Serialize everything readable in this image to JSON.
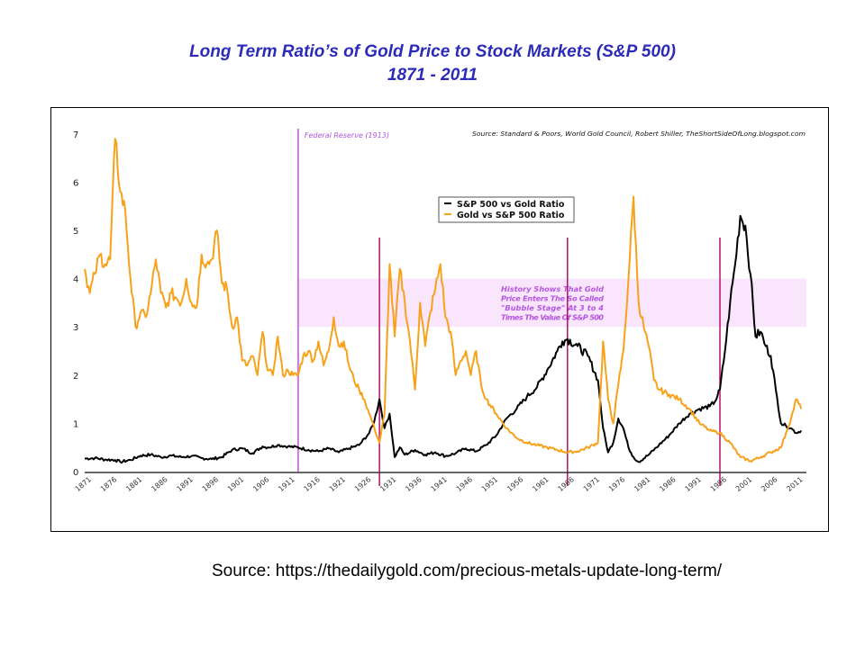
{
  "title_line1": "Long Term  Ratio’s of Gold Price to Stock Markets (S&P 500)",
  "title_line2": "1871 -  2011",
  "footer_source": "Source:  https://thedailygold.com/precious-metals-update-long-term/",
  "chart_data": {
    "type": "line",
    "title": "Long Term Ratio’s of Gold Price to Stock Markets (S&P 500) 1871 - 2011",
    "xlabel": "",
    "ylabel": "",
    "xlim": [
      1871,
      2013
    ],
    "ylim": [
      0,
      7
    ],
    "yticks": [
      0,
      1,
      2,
      3,
      4,
      5,
      6,
      7
    ],
    "xticks": [
      1871,
      1876,
      1881,
      1886,
      1891,
      1896,
      1901,
      1906,
      1911,
      1916,
      1921,
      1926,
      1931,
      1936,
      1941,
      1946,
      1951,
      1956,
      1961,
      1966,
      1971,
      1976,
      1981,
      1986,
      1991,
      1996,
      2001,
      2006,
      2011
    ],
    "grid": false,
    "legend_position": "upper-center",
    "source_note": "Source: Standard & Poors, World Gold Council, Robert Shiller, TheShortSideOfLong.blogspot.com",
    "series": [
      {
        "name": "S&P 500 vs Gold Ratio",
        "color": "#000000",
        "x": [
          1871,
          1873,
          1875,
          1877,
          1878,
          1880,
          1882,
          1884,
          1886,
          1888,
          1890,
          1892,
          1894,
          1896,
          1898,
          1900,
          1902,
          1904,
          1906,
          1907,
          1909,
          1911,
          1913,
          1915,
          1917,
          1919,
          1921,
          1923,
          1925,
          1927,
          1928,
          1929,
          1930,
          1931,
          1932,
          1933,
          1934,
          1936,
          1938,
          1940,
          1942,
          1944,
          1946,
          1948,
          1950,
          1952,
          1954,
          1956,
          1958,
          1960,
          1962,
          1964,
          1965,
          1966,
          1968,
          1970,
          1972,
          1973,
          1974,
          1975,
          1976,
          1977,
          1978,
          1979,
          1980,
          1982,
          1984,
          1986,
          1988,
          1990,
          1992,
          1994,
          1995,
          1996,
          1997,
          1998,
          1999,
          2000,
          2001,
          2002,
          2003,
          2004,
          2005,
          2006,
          2007,
          2008,
          2009,
          2010,
          2011,
          2012
        ],
        "y": [
          0.27,
          0.28,
          0.25,
          0.24,
          0.2,
          0.24,
          0.33,
          0.35,
          0.3,
          0.33,
          0.3,
          0.32,
          0.28,
          0.26,
          0.3,
          0.45,
          0.48,
          0.38,
          0.52,
          0.5,
          0.55,
          0.52,
          0.5,
          0.45,
          0.42,
          0.48,
          0.4,
          0.48,
          0.55,
          0.8,
          1.05,
          1.5,
          0.9,
          1.2,
          0.3,
          0.5,
          0.35,
          0.45,
          0.35,
          0.4,
          0.32,
          0.38,
          0.48,
          0.42,
          0.55,
          0.75,
          1.1,
          1.3,
          1.55,
          1.75,
          2.1,
          2.5,
          2.7,
          2.75,
          2.6,
          2.4,
          1.9,
          0.9,
          0.4,
          0.6,
          1.1,
          0.9,
          0.5,
          0.3,
          0.2,
          0.35,
          0.55,
          0.75,
          1.0,
          1.2,
          1.3,
          1.35,
          1.45,
          1.7,
          2.5,
          3.5,
          4.3,
          5.3,
          5.1,
          4.1,
          2.8,
          2.9,
          2.6,
          2.4,
          1.7,
          1.0,
          0.95,
          0.9,
          0.8,
          0.85
        ]
      },
      {
        "name": "Gold vs S&P 500 Ratio",
        "color": "#f7a21b",
        "x": [
          1871,
          1872,
          1873,
          1874,
          1875,
          1876,
          1877,
          1878,
          1879,
          1880,
          1881,
          1882,
          1883,
          1884,
          1885,
          1886,
          1887,
          1888,
          1889,
          1890,
          1891,
          1892,
          1893,
          1894,
          1895,
          1896,
          1897,
          1898,
          1899,
          1900,
          1901,
          1902,
          1903,
          1904,
          1905,
          1906,
          1907,
          1908,
          1909,
          1910,
          1911,
          1912,
          1913,
          1914,
          1915,
          1916,
          1917,
          1918,
          1919,
          1920,
          1921,
          1922,
          1923,
          1924,
          1925,
          1926,
          1927,
          1928,
          1929,
          1930,
          1931,
          1932,
          1933,
          1934,
          1935,
          1936,
          1937,
          1938,
          1939,
          1940,
          1941,
          1942,
          1943,
          1944,
          1945,
          1946,
          1947,
          1948,
          1949,
          1950,
          1952,
          1954,
          1956,
          1958,
          1960,
          1962,
          1964,
          1966,
          1968,
          1970,
          1972,
          1973,
          1974,
          1975,
          1976,
          1977,
          1978,
          1979,
          1980,
          1981,
          1982,
          1983,
          1984,
          1986,
          1988,
          1990,
          1992,
          1994,
          1996,
          1998,
          2000,
          2002,
          2004,
          2006,
          2008,
          2009,
          2010,
          2011,
          2012
        ],
        "y": [
          4.2,
          3.7,
          4.1,
          4.5,
          4.3,
          4.4,
          6.9,
          5.8,
          5.4,
          4.0,
          3.0,
          3.3,
          3.2,
          3.7,
          4.4,
          3.7,
          3.4,
          3.7,
          3.6,
          3.5,
          4.0,
          3.5,
          3.4,
          4.5,
          4.3,
          4.4,
          5.0,
          3.9,
          3.8,
          3.0,
          3.2,
          2.3,
          2.2,
          2.4,
          2.0,
          2.9,
          2.1,
          2.0,
          2.8,
          2.0,
          2.1,
          2.0,
          2.0,
          2.4,
          2.5,
          2.3,
          2.7,
          2.2,
          2.5,
          3.2,
          2.6,
          2.7,
          2.2,
          1.9,
          1.7,
          1.5,
          1.2,
          0.9,
          0.6,
          1.2,
          4.3,
          2.8,
          4.2,
          3.5,
          2.7,
          1.7,
          3.5,
          2.6,
          3.3,
          3.8,
          4.3,
          3.2,
          2.9,
          2.0,
          2.3,
          2.5,
          2.0,
          2.5,
          1.8,
          1.5,
          1.2,
          0.9,
          0.7,
          0.6,
          0.55,
          0.5,
          0.45,
          0.4,
          0.42,
          0.5,
          0.6,
          2.7,
          1.5,
          1.0,
          1.8,
          2.5,
          4.0,
          5.7,
          3.5,
          3.0,
          2.6,
          1.9,
          1.7,
          1.6,
          1.5,
          1.3,
          1.0,
          0.85,
          0.8,
          0.6,
          0.3,
          0.22,
          0.3,
          0.4,
          0.5,
          0.8,
          1.1,
          1.5,
          1.3
        ]
      }
    ],
    "annotations": [
      {
        "type": "vline",
        "x": 1913,
        "color": "#cc77dd",
        "label": "Federal Reserve (1913)"
      },
      {
        "type": "vline",
        "x": 1929,
        "color": "#b0005a",
        "label": ""
      },
      {
        "type": "vline",
        "x": 1966,
        "color": "#b0005a",
        "label": ""
      },
      {
        "type": "vline",
        "x": 1996,
        "color": "#b0005a",
        "label": ""
      },
      {
        "type": "hband",
        "y": [
          3,
          4
        ],
        "color": "#f9e6fc",
        "x_start": 1913,
        "label": [
          "History Shows That Gold",
          "Price Enters The So Called",
          "\"Bubble Stage\" At 3 to 4",
          "Times The Value Of S&P 500"
        ]
      }
    ]
  }
}
